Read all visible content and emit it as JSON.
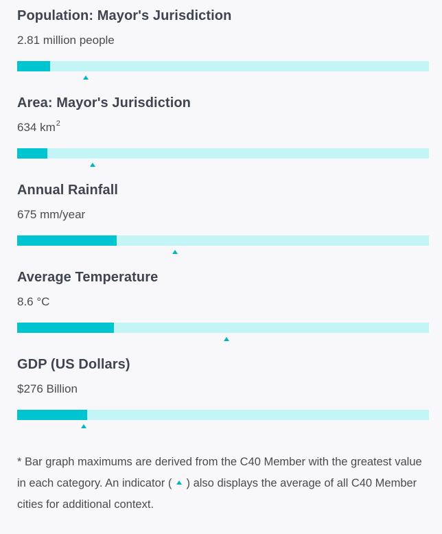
{
  "stats": [
    {
      "title": "Population: Mayor's Jurisdiction",
      "value": "2.81 million people",
      "fill_fraction": 0.08,
      "average_fraction": 0.167
    },
    {
      "title": "Area: Mayor's Jurisdiction",
      "value": "634 km",
      "value_sup": "2",
      "fill_fraction": 0.073,
      "average_fraction": 0.183
    },
    {
      "title": "Annual Rainfall",
      "value": "675 mm/year",
      "fill_fraction": 0.242,
      "average_fraction": 0.383
    },
    {
      "title": "Average Temperature",
      "value": "8.6 °C",
      "fill_fraction": 0.235,
      "average_fraction": 0.508
    },
    {
      "title": "GDP (US Dollars)",
      "value": "$276 Billion",
      "fill_fraction": 0.17,
      "average_fraction": 0.161
    }
  ],
  "footnote": {
    "part1": "* Bar graph maximums are derived from the C40 Member with the greatest value in each category. An indicator (",
    "part2": ") also displays the average of all C40 Member cities for additional context."
  },
  "colors": {
    "bar_fill": "#00c4cf",
    "bar_track": "#c4f5f6",
    "marker": "#00b5c1"
  }
}
